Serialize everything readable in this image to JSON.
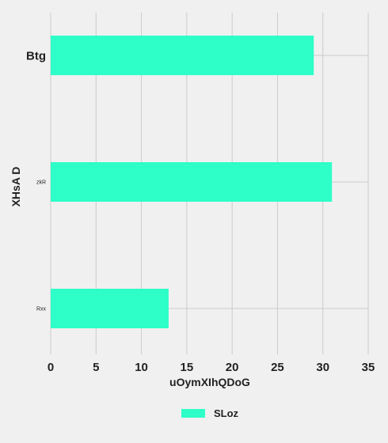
{
  "chart_data": {
    "type": "bar",
    "orientation": "horizontal",
    "categories": [
      "Btg",
      "zkR",
      "Rxx"
    ],
    "series": [
      {
        "name": "SLoz",
        "values": [
          29,
          31,
          13
        ],
        "color": "#2effc8"
      }
    ],
    "xlabel": "uOymXIhQDoG",
    "ylabel": "XHsA D",
    "xlim": [
      0,
      35
    ],
    "xticks": [
      0,
      5,
      10,
      15,
      20,
      25,
      30,
      35
    ],
    "grid": true,
    "legend_position": "bottom",
    "background": "#f0f0f0",
    "grid_color": "#cbcbcb"
  }
}
